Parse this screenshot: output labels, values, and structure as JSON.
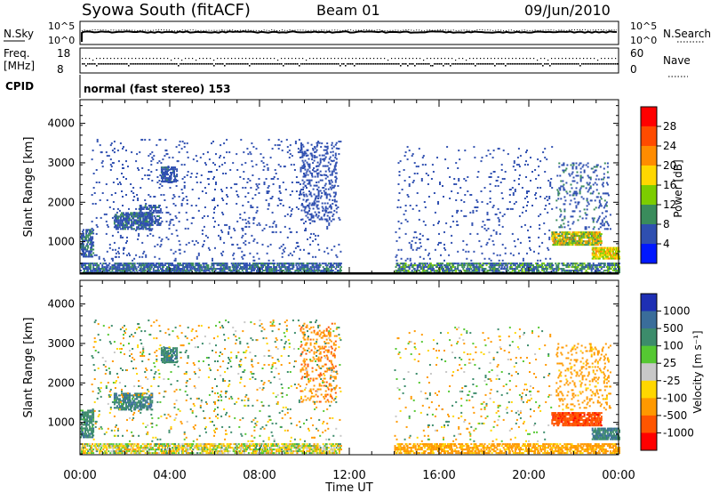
{
  "header": {
    "station": "Syowa South (fitACF)",
    "beam": "Beam 01",
    "date": "09/Jun/2010"
  },
  "status_panel": {
    "nsky_label": "N.Sky",
    "nsky_ticks": [
      "10^5",
      "10^0"
    ],
    "nsearch_label": "N.Search",
    "nsearch_ticks": [
      "10^5",
      "10^0"
    ],
    "freq_label": "Freq.",
    "freq_unit": "[MHz]",
    "freq_ticks": [
      "18",
      "8"
    ],
    "nave_label": "Nave",
    "nave_ticks": [
      "60",
      "0"
    ],
    "cpid_label": "CPID",
    "cpid_text": "normal (fast stereo) 153"
  },
  "x_axis": {
    "label": "Time UT",
    "ticks": [
      "00:00",
      "04:00",
      "08:00",
      "12:00",
      "16:00",
      "20:00",
      "00:00"
    ]
  },
  "power_colorbar": {
    "label": "Power [dB]",
    "ticks": [
      "28",
      "24",
      "20",
      "16",
      "12",
      "8",
      "4"
    ],
    "colors": [
      "#ff0000",
      "#ff4b00",
      "#ff8c00",
      "#ffd700",
      "#7ccd00",
      "#3a8c5c",
      "#2f4fb0",
      "#0018ff"
    ]
  },
  "velocity_colorbar": {
    "label": "Velocity [m s⁻¹]",
    "ticks": [
      "1000",
      "500",
      "100",
      "25",
      "-25",
      "-100",
      "-500",
      "-1000"
    ],
    "colors": [
      "#1e2fb4",
      "#3a6d9a",
      "#3c8c6b",
      "#55c832",
      "#c8c8c8",
      "#ffd700",
      "#ff9900",
      "#ff5500",
      "#ff0000"
    ]
  },
  "chart_data": [
    {
      "type": "heatmap",
      "name": "power",
      "xlabel": "Time UT",
      "ylabel": "Slant Range [km]",
      "xlim": [
        0,
        24
      ],
      "ylim": [
        180,
        4600
      ],
      "yticks": [
        1000,
        2000,
        3000,
        4000
      ],
      "zlim": [
        0,
        32
      ],
      "no_data_interval": [
        11.6,
        14.0
      ],
      "clusters": [
        {
          "t0": 0.0,
          "t1": 11.6,
          "r0": 200,
          "r1": 450,
          "density": 0.6,
          "z": [
            4,
            10
          ],
          "note": "near-range band"
        },
        {
          "t0": 0.0,
          "t1": 0.6,
          "r0": 600,
          "r1": 1300,
          "density": 0.5,
          "z": [
            4,
            10
          ]
        },
        {
          "t0": 1.5,
          "t1": 3.2,
          "r0": 1300,
          "r1": 1750,
          "density": 0.55,
          "z": [
            4,
            10
          ]
        },
        {
          "t0": 3.6,
          "t1": 4.3,
          "r0": 2500,
          "r1": 2900,
          "density": 0.6,
          "z": [
            4,
            9
          ]
        },
        {
          "t0": 2.6,
          "t1": 3.6,
          "r0": 1400,
          "r1": 1900,
          "density": 0.35,
          "z": [
            4,
            9
          ]
        },
        {
          "t0": 9.8,
          "t1": 11.4,
          "r0": 1500,
          "r1": 3500,
          "density": 0.15,
          "z": [
            4,
            8
          ]
        },
        {
          "t0": 0.5,
          "t1": 11.6,
          "r0": 500,
          "r1": 3600,
          "density": 0.04,
          "z": [
            4,
            8
          ]
        },
        {
          "t0": 14.0,
          "t1": 24.0,
          "r0": 200,
          "r1": 450,
          "density": 0.55,
          "z": [
            4,
            14
          ]
        },
        {
          "t0": 21.0,
          "t1": 23.2,
          "r0": 900,
          "r1": 1250,
          "density": 0.75,
          "z": [
            8,
            24
          ]
        },
        {
          "t0": 22.8,
          "t1": 24.0,
          "r0": 550,
          "r1": 850,
          "density": 0.7,
          "z": [
            12,
            22
          ]
        },
        {
          "t0": 21.2,
          "t1": 23.6,
          "r0": 1300,
          "r1": 3000,
          "density": 0.12,
          "z": [
            4,
            9
          ]
        },
        {
          "t0": 14.0,
          "t1": 21.0,
          "r0": 500,
          "r1": 3400,
          "density": 0.03,
          "z": [
            4,
            8
          ]
        }
      ]
    },
    {
      "type": "heatmap",
      "name": "velocity",
      "xlabel": "Time UT",
      "ylabel": "Slant Range [km]",
      "xlim": [
        0,
        24
      ],
      "ylim": [
        180,
        4600
      ],
      "yticks": [
        1000,
        2000,
        3000,
        4000
      ],
      "zlim": [
        -1000,
        1000
      ],
      "no_data_interval": [
        11.6,
        14.0
      ],
      "clusters": [
        {
          "t0": 0.0,
          "t1": 11.6,
          "r0": 200,
          "r1": 450,
          "density": 0.55,
          "z": [
            -150,
            120
          ],
          "note": "near-range band"
        },
        {
          "t0": 0.0,
          "t1": 0.6,
          "r0": 600,
          "r1": 1300,
          "density": 0.5,
          "z": [
            50,
            600
          ]
        },
        {
          "t0": 1.5,
          "t1": 3.2,
          "r0": 1300,
          "r1": 1750,
          "density": 0.55,
          "z": [
            100,
            800
          ]
        },
        {
          "t0": 3.6,
          "t1": 4.3,
          "r0": 2500,
          "r1": 2900,
          "density": 0.6,
          "z": [
            100,
            700
          ]
        },
        {
          "t0": 9.8,
          "t1": 11.4,
          "r0": 1500,
          "r1": 3500,
          "density": 0.15,
          "z": [
            -700,
            -100
          ]
        },
        {
          "t0": 0.5,
          "t1": 11.6,
          "r0": 500,
          "r1": 3600,
          "density": 0.04,
          "z": [
            -300,
            300
          ]
        },
        {
          "t0": 14.0,
          "t1": 24.0,
          "r0": 200,
          "r1": 450,
          "density": 0.5,
          "z": [
            -300,
            -40
          ]
        },
        {
          "t0": 21.0,
          "t1": 23.2,
          "r0": 900,
          "r1": 1250,
          "density": 0.75,
          "z": [
            -1100,
            -500
          ]
        },
        {
          "t0": 22.8,
          "t1": 24.0,
          "r0": 550,
          "r1": 850,
          "density": 0.7,
          "z": [
            100,
            900
          ]
        },
        {
          "t0": 21.2,
          "t1": 23.6,
          "r0": 1300,
          "r1": 3000,
          "density": 0.12,
          "z": [
            -400,
            -60
          ]
        },
        {
          "t0": 14.0,
          "t1": 21.0,
          "r0": 500,
          "r1": 3400,
          "density": 0.03,
          "z": [
            -300,
            200
          ]
        }
      ]
    }
  ]
}
